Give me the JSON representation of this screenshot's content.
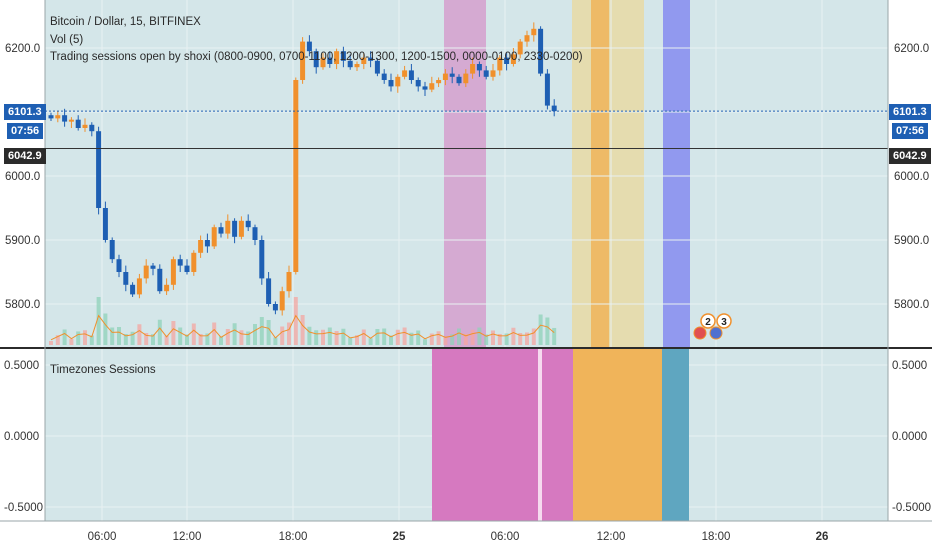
{
  "header": {
    "symbol_line": "Bitcoin / Dollar, 15, BITFINEX",
    "volume_line": "Vol (5)",
    "indicator_line": "Trading sessions open by shoxi (0800-0900, 0700-1100, 1200-1300, 1200-1500, 0000-0100, 2330-0200)"
  },
  "price_tags": {
    "last_price": "6101.3",
    "countdown": "07:56",
    "crosshair_price": "6042.9"
  },
  "price_axis": {
    "ticks": [
      "6200.0",
      "6100.0",
      "6000.0",
      "5900.0",
      "5800.0"
    ],
    "values": [
      6200,
      6100,
      6000,
      5900,
      5800
    ]
  },
  "sub_axis": {
    "ticks": [
      "0.5000",
      "0.0000",
      "-0.5000"
    ],
    "values": [
      0.5,
      0,
      -0.5
    ]
  },
  "time_axis": {
    "labels": [
      "06:00",
      "12:00",
      "18:00",
      "25",
      "06:00",
      "12:00",
      "18:00",
      "26"
    ]
  },
  "sub_pane": {
    "title": "Timezones Sessions"
  },
  "event_badges": [
    "2",
    "3"
  ],
  "colors": {
    "background": "#d4e6e9",
    "up_candle": "#f0902c",
    "down_candle": "#1e5fb3",
    "last_price_line": "#1e5fb3",
    "volume_ma": "#f0902c",
    "session_pink": "#d679c0",
    "session_orange": "#f0b45a",
    "session_yellow": "#e8d9a0",
    "session_blue": "#7b7ff0",
    "session_teal": "#5fa6c0"
  },
  "chart_data": {
    "type": "candlestick",
    "x_labels": [
      "06:00",
      "12:00",
      "18:00",
      "25",
      "06:00",
      "12:00",
      "18:00",
      "26"
    ],
    "ylim": [
      5740,
      6265
    ],
    "close_anchors": [
      [
        6090,
        6095,
        6085,
        6088,
        6075,
        6080
      ],
      [
        6070,
        5950,
        5900,
        5870,
        5850,
        5830
      ],
      [
        5815,
        5840,
        5860,
        5855,
        5820,
        5830
      ],
      [
        5870,
        5860,
        5850,
        5880,
        5900,
        5890
      ],
      [
        5920,
        5910,
        5930,
        5905,
        5930,
        5920
      ],
      [
        5900,
        5840,
        5800,
        5790,
        5820,
        5850
      ],
      [
        6150,
        6210,
        6195,
        6170,
        6185,
        6175
      ],
      [
        6195,
        6180,
        6170,
        6175,
        6185,
        6180
      ],
      [
        6160,
        6150,
        6140,
        6155,
        6165,
        6150
      ],
      [
        6140,
        6135,
        6145,
        6150,
        6160,
        6155
      ],
      [
        6145,
        6160,
        6175,
        6165,
        6155,
        6165
      ],
      [
        6185,
        6175,
        6190,
        6210,
        6220,
        6230
      ],
      [
        6160,
        6110,
        6101.3
      ]
    ],
    "last_price": 6101.3,
    "crosshair_price": 6042.9
  }
}
